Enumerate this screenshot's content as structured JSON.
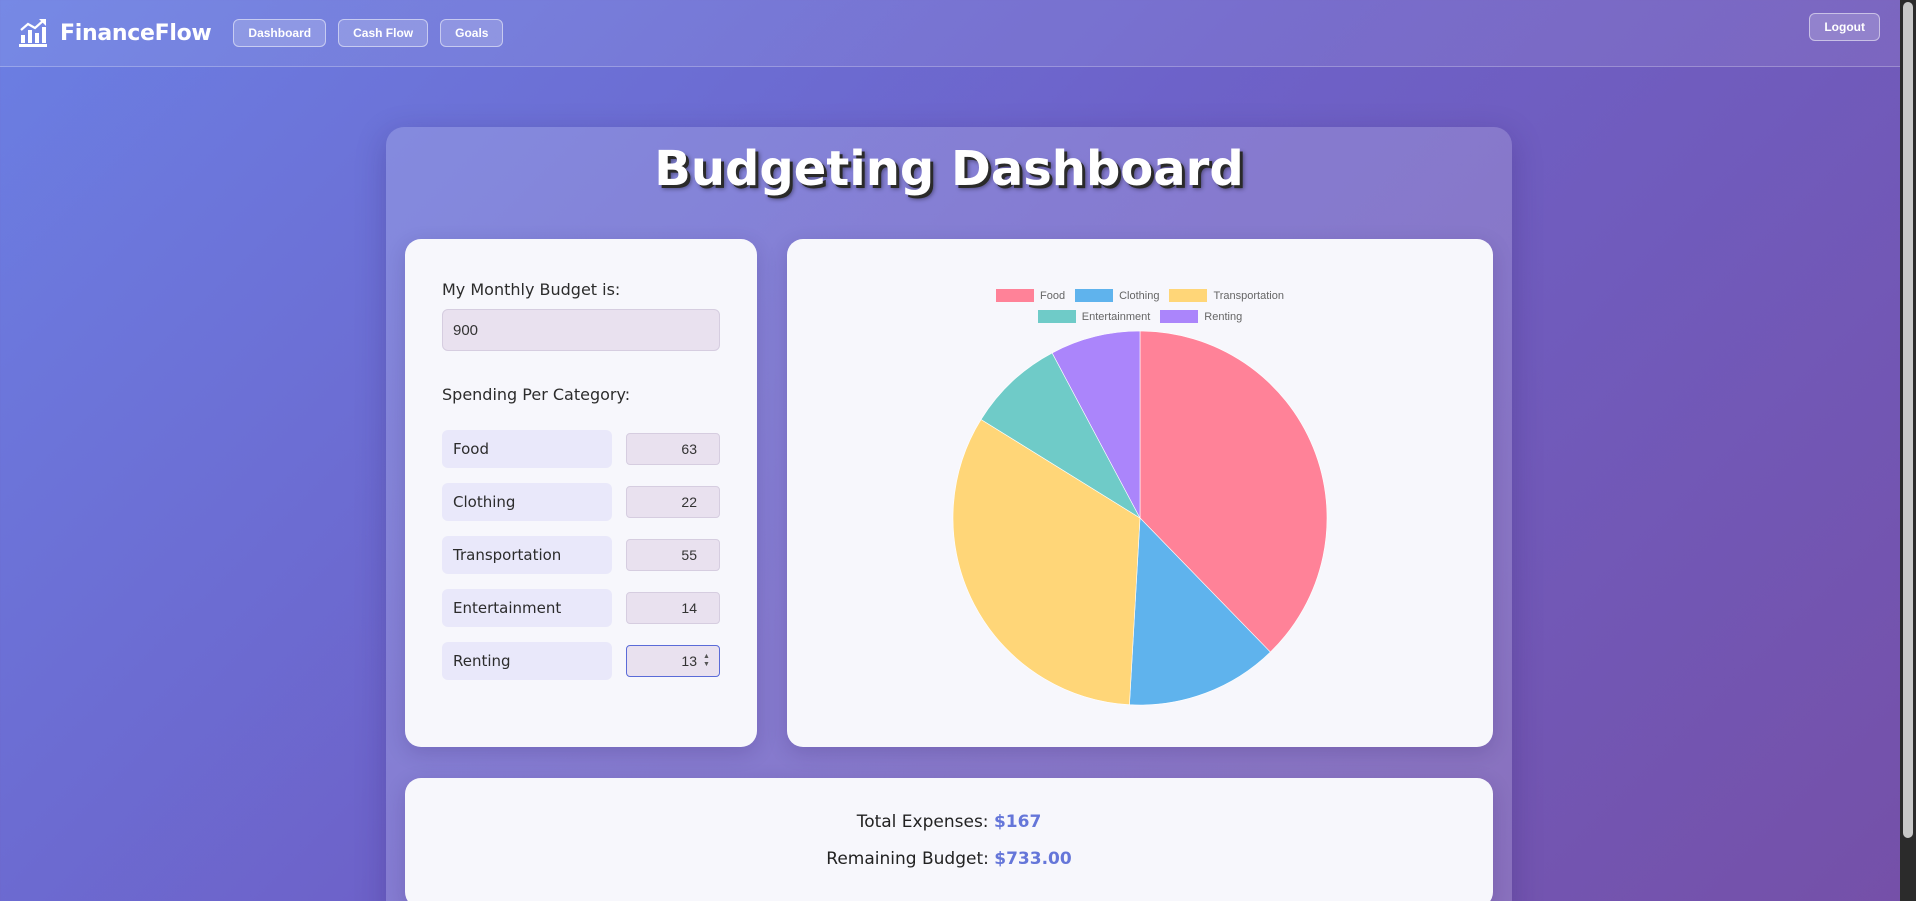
{
  "nav": {
    "brand": "FinanceFlow",
    "links": [
      "Dashboard",
      "Cash Flow",
      "Goals"
    ],
    "logout": "Logout"
  },
  "page": {
    "title": "Budgeting Dashboard"
  },
  "budget": {
    "label": "My Monthly Budget is:",
    "value": "900",
    "spending_label": "Spending Per Category:",
    "categories": [
      {
        "name": "Food",
        "value": "63"
      },
      {
        "name": "Clothing",
        "value": "22"
      },
      {
        "name": "Transportation",
        "value": "55"
      },
      {
        "name": "Entertainment",
        "value": "14"
      },
      {
        "name": "Renting",
        "value": "13"
      }
    ]
  },
  "summary": {
    "total_label": "Total Expenses:",
    "total_value": "$167",
    "remaining_label": "Remaining Budget:",
    "remaining_value": "$733.00"
  },
  "colors": {
    "accent": "#6576d9"
  },
  "chart_data": {
    "type": "pie",
    "categories": [
      "Food",
      "Clothing",
      "Transportation",
      "Entertainment",
      "Renting"
    ],
    "values": [
      63,
      22,
      55,
      14,
      13
    ],
    "colors": [
      "#ff8298",
      "#5fb3ed",
      "#ffd678",
      "#6fcbc8",
      "#ab85fb"
    ],
    "legend_position": "top"
  }
}
